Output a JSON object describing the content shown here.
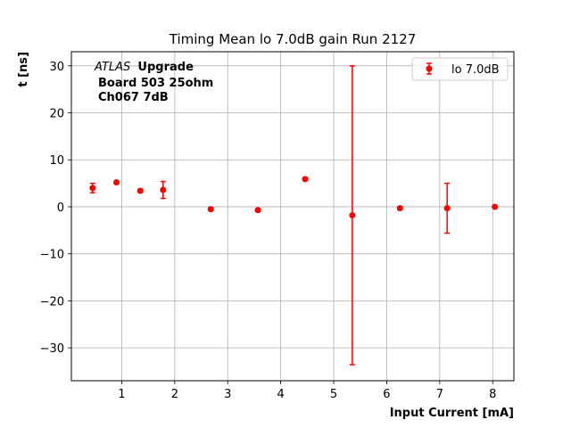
{
  "chart_data": {
    "type": "scatter",
    "title": "Timing Mean lo 7.0dB gain Run 2127",
    "xlabel": "Input Current [mA]",
    "ylabel": "t [ns]",
    "xlim": [
      0.05,
      8.4
    ],
    "ylim": [
      -37,
      33
    ],
    "x_ticks": [
      1,
      2,
      3,
      4,
      5,
      6,
      7,
      8
    ],
    "y_ticks": [
      30,
      20,
      10,
      0,
      -10,
      -20,
      -30
    ],
    "x_tick_labels": [
      "1",
      "2",
      "3",
      "4",
      "5",
      "6",
      "7",
      "8"
    ],
    "y_tick_labels": [
      "30",
      "20",
      "10",
      "0",
      "−10",
      "−20",
      "−30"
    ],
    "grid": true,
    "legend_position": "top-right",
    "annotation": {
      "experiment": "ATLAS",
      "tag": "Upgrade",
      "line2": "Board 503 25ohm",
      "line3": "Ch067 7dB"
    },
    "series": [
      {
        "name": "lo 7.0dB",
        "color": "#ff0000",
        "marker": "circle",
        "x": [
          0.45,
          0.9,
          1.35,
          1.78,
          2.68,
          3.57,
          4.46,
          5.35,
          6.25,
          7.14,
          8.04
        ],
        "y": [
          4.0,
          5.2,
          3.4,
          3.6,
          -0.5,
          -0.7,
          5.9,
          -1.8,
          -0.3,
          -0.3,
          0.0
        ],
        "yerr": [
          1.0,
          0.3,
          0.3,
          1.8,
          0.3,
          0.3,
          0.3,
          31.8,
          0.3,
          5.3,
          0.3
        ]
      }
    ]
  }
}
